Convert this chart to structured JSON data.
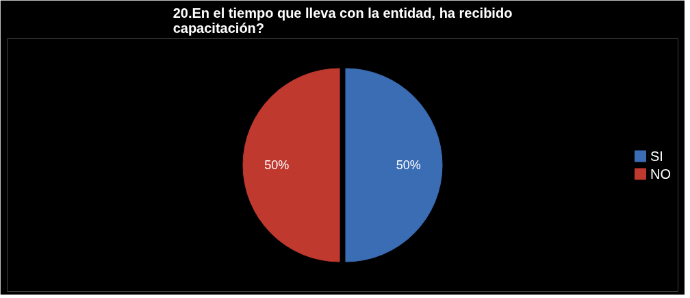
{
  "chart_data": {
    "type": "pie",
    "title": "20.En el tiempo que lleva con la entidad, ha recibido capacitación?",
    "categories": [
      "SI",
      "NO"
    ],
    "values": [
      50,
      50
    ],
    "colors": [
      "#3b6db4",
      "#c0392f"
    ],
    "value_labels": [
      "50%",
      "50%"
    ],
    "legend": "right"
  }
}
